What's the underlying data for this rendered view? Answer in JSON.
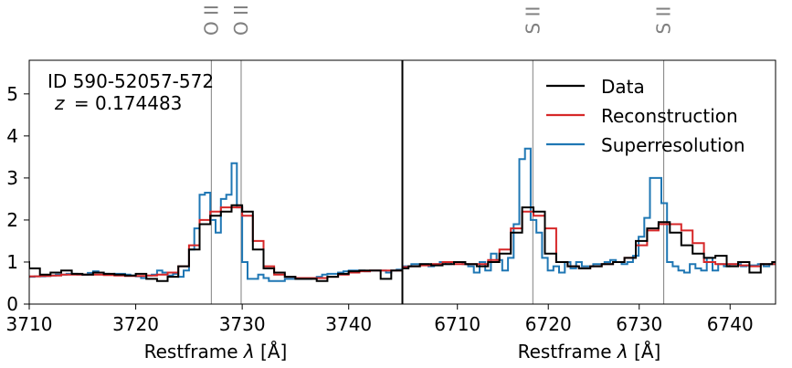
{
  "chart_data": {
    "type": "line",
    "ylim": [
      0,
      5.8
    ],
    "y_ticks": [
      "0",
      "1",
      "2",
      "3",
      "4",
      "5"
    ],
    "colors": {
      "Data": "#000000",
      "Reconstruction": "#d62728",
      "Superresolution": "#1f77b4",
      "lines": "#808080"
    },
    "annotation": {
      "id": "ID 590-52057-572",
      "z_symbol": "z",
      "z_value": "= 0.174483"
    },
    "legend": {
      "position": "upper-right",
      "entries": [
        "Data",
        "Reconstruction",
        "Superresolution"
      ]
    },
    "panels": [
      {
        "xlim": [
          3710,
          3745
        ],
        "xlabel_main": "Restframe ",
        "xlabel_sym": "λ",
        "xlabel_unit": " [Å]",
        "x_ticks": [
          "3710",
          "3720",
          "3730",
          "3740"
        ],
        "lines": [
          {
            "label": "O II",
            "x": 3727.1
          },
          {
            "label": "O II",
            "x": 3729.9
          }
        ],
        "series": [
          {
            "name": "Data",
            "step": 1.0,
            "x": [
              3709.5,
              3710.5,
              3711.5,
              3712.5,
              3713.5,
              3714.5,
              3715.5,
              3716.5,
              3717.5,
              3718.5,
              3719.5,
              3720.5,
              3721.5,
              3722.5,
              3723.5,
              3724.5,
              3725.5,
              3726.5,
              3727.5,
              3728.5,
              3729.5,
              3730.5,
              3731.5,
              3732.5,
              3733.5,
              3734.5,
              3735.5,
              3736.5,
              3737.5,
              3738.5,
              3739.5,
              3740.5,
              3741.5,
              3742.5,
              3743.5,
              3744.5
            ],
            "y": [
              1.0,
              0.85,
              0.7,
              0.75,
              0.8,
              0.72,
              0.7,
              0.75,
              0.72,
              0.7,
              0.68,
              0.72,
              0.6,
              0.55,
              0.65,
              0.9,
              1.3,
              1.9,
              2.1,
              2.2,
              2.35,
              2.2,
              1.3,
              0.85,
              0.75,
              0.65,
              0.6,
              0.6,
              0.55,
              0.65,
              0.72,
              0.78,
              0.8,
              0.8,
              0.6,
              0.8
            ]
          },
          {
            "name": "Reconstruction",
            "step": 1.0,
            "x": [
              3709.5,
              3710.5,
              3711.5,
              3712.5,
              3713.5,
              3714.5,
              3715.5,
              3716.5,
              3717.5,
              3718.5,
              3719.5,
              3720.5,
              3721.5,
              3722.5,
              3723.5,
              3724.5,
              3725.5,
              3726.5,
              3727.5,
              3728.5,
              3729.5,
              3730.5,
              3731.5,
              3732.5,
              3733.5,
              3734.5,
              3735.5,
              3736.5,
              3737.5,
              3738.5,
              3739.5,
              3740.5,
              3741.5,
              3742.5,
              3743.5,
              3744.5
            ],
            "y": [
              0.65,
              0.66,
              0.67,
              0.68,
              0.7,
              0.7,
              0.7,
              0.7,
              0.69,
              0.68,
              0.67,
              0.67,
              0.68,
              0.7,
              0.75,
              0.9,
              1.4,
              2.0,
              2.2,
              2.3,
              2.3,
              2.1,
              1.5,
              0.9,
              0.7,
              0.65,
              0.62,
              0.62,
              0.62,
              0.65,
              0.7,
              0.75,
              0.78,
              0.8,
              0.8,
              0.8
            ]
          },
          {
            "name": "Superresolution",
            "step": 0.5,
            "x": [
              3709.25,
              3709.75,
              3710.25,
              3710.75,
              3711.25,
              3711.75,
              3712.25,
              3712.75,
              3713.25,
              3713.75,
              3714.25,
              3714.75,
              3715.25,
              3715.75,
              3716.25,
              3716.75,
              3717.25,
              3717.75,
              3718.25,
              3718.75,
              3719.25,
              3719.75,
              3720.25,
              3720.75,
              3721.25,
              3721.75,
              3722.25,
              3722.75,
              3723.25,
              3723.75,
              3724.25,
              3724.75,
              3725.25,
              3725.75,
              3726.25,
              3726.75,
              3727.25,
              3727.75,
              3728.25,
              3728.75,
              3729.25,
              3729.75,
              3730.25,
              3730.75,
              3731.25,
              3731.75,
              3732.25,
              3732.75,
              3733.25,
              3733.75,
              3734.25,
              3734.75,
              3735.25,
              3735.75,
              3736.25,
              3736.75,
              3737.25,
              3737.75,
              3738.25,
              3738.75,
              3739.25,
              3739.75,
              3740.25,
              3740.75,
              3741.25,
              3741.75,
              3742.25,
              3742.75,
              3743.25,
              3743.75,
              3744.25,
              3744.75
            ],
            "y": [
              0.65,
              0.65,
              0.65,
              0.66,
              0.66,
              0.67,
              0.68,
              0.7,
              0.7,
              0.72,
              0.72,
              0.7,
              0.7,
              0.74,
              0.78,
              0.75,
              0.72,
              0.7,
              0.72,
              0.72,
              0.7,
              0.68,
              0.66,
              0.62,
              0.68,
              0.7,
              0.8,
              0.75,
              0.68,
              0.72,
              0.65,
              0.8,
              1.3,
              1.8,
              2.6,
              2.65,
              2.0,
              1.7,
              2.5,
              2.6,
              3.35,
              2.3,
              1.0,
              0.6,
              0.6,
              0.7,
              0.62,
              0.55,
              0.55,
              0.55,
              0.6,
              0.6,
              0.6,
              0.6,
              0.6,
              0.62,
              0.65,
              0.7,
              0.72,
              0.72,
              0.75,
              0.78,
              0.8,
              0.8,
              0.8,
              0.78,
              0.8,
              0.8,
              0.8,
              0.75,
              0.8,
              0.82
            ]
          }
        ]
      },
      {
        "xlim": [
          6704,
          6745
        ],
        "xlabel_main": "Restframe ",
        "xlabel_sym": "λ",
        "xlabel_unit": " [Å]",
        "x_ticks": [
          "6710",
          "6720",
          "6730",
          "6740"
        ],
        "lines": [
          {
            "label": "S II",
            "x": 6718.3
          },
          {
            "label": "S II",
            "x": 6732.7
          }
        ],
        "series": [
          {
            "name": "Data",
            "step": 1.25,
            "x": [
              6704.0,
              6705.25,
              6706.5,
              6707.75,
              6709.0,
              6710.25,
              6711.5,
              6712.75,
              6714.0,
              6715.25,
              6716.5,
              6717.75,
              6719.0,
              6720.25,
              6721.5,
              6722.75,
              6724.0,
              6725.25,
              6726.5,
              6727.75,
              6729.0,
              6730.25,
              6731.5,
              6732.75,
              6734.0,
              6735.25,
              6736.5,
              6737.75,
              6739.0,
              6740.25,
              6741.5,
              6742.75,
              6744.0,
              6745.25
            ],
            "y": [
              0.85,
              0.9,
              0.95,
              0.92,
              0.95,
              1.0,
              0.95,
              0.9,
              1.0,
              1.2,
              1.7,
              2.3,
              2.2,
              1.2,
              1.0,
              0.9,
              0.85,
              0.9,
              0.95,
              1.0,
              1.1,
              1.5,
              1.8,
              1.95,
              1.7,
              1.4,
              1.2,
              1.1,
              1.15,
              0.9,
              1.0,
              0.75,
              0.95,
              1.0
            ]
          },
          {
            "name": "Reconstruction",
            "step": 1.25,
            "x": [
              6704.0,
              6705.25,
              6706.5,
              6707.75,
              6709.0,
              6710.25,
              6711.5,
              6712.75,
              6714.0,
              6715.25,
              6716.5,
              6717.75,
              6719.0,
              6720.25,
              6721.5,
              6722.75,
              6724.0,
              6725.25,
              6726.5,
              6727.75,
              6729.0,
              6730.25,
              6731.5,
              6732.75,
              6734.0,
              6735.25,
              6736.5,
              6737.75,
              6739.0,
              6740.25,
              6741.5,
              6742.75,
              6744.0,
              6745.25
            ],
            "y": [
              0.88,
              0.9,
              0.92,
              0.95,
              1.0,
              0.95,
              0.95,
              0.95,
              1.05,
              1.3,
              1.8,
              2.2,
              2.1,
              1.8,
              1.0,
              0.9,
              0.85,
              0.9,
              0.95,
              1.0,
              1.1,
              1.4,
              1.75,
              1.9,
              1.9,
              1.75,
              1.45,
              1.0,
              0.95,
              0.95,
              0.92,
              0.9,
              0.95,
              0.95
            ]
          },
          {
            "name": "Superresolution",
            "step": 0.625,
            "x": [
              6704.0,
              6704.625,
              6705.25,
              6705.875,
              6706.5,
              6707.125,
              6707.75,
              6708.375,
              6709.0,
              6709.625,
              6710.25,
              6710.875,
              6711.5,
              6712.125,
              6712.75,
              6713.375,
              6714.0,
              6714.625,
              6715.25,
              6715.875,
              6716.5,
              6717.125,
              6717.75,
              6718.375,
              6719.0,
              6719.625,
              6720.25,
              6720.875,
              6721.5,
              6722.125,
              6722.75,
              6723.375,
              6724.0,
              6724.625,
              6725.25,
              6725.875,
              6726.5,
              6727.125,
              6727.75,
              6728.375,
              6729.0,
              6729.625,
              6730.25,
              6730.875,
              6731.5,
              6732.125,
              6732.75,
              6733.375,
              6734.0,
              6734.625,
              6735.25,
              6735.875,
              6736.5,
              6737.125,
              6737.75,
              6738.375,
              6739.0,
              6739.625,
              6740.25,
              6740.875,
              6741.5,
              6742.125,
              6742.75,
              6743.375,
              6744.0,
              6744.625
            ],
            "y": [
              0.9,
              0.9,
              0.95,
              0.95,
              0.95,
              0.9,
              0.95,
              1.0,
              0.95,
              1.0,
              1.0,
              0.95,
              0.9,
              0.75,
              1.0,
              0.8,
              1.2,
              1.05,
              0.8,
              1.1,
              1.9,
              3.45,
              3.7,
              2.0,
              1.7,
              1.1,
              0.8,
              0.9,
              0.75,
              1.0,
              0.85,
              1.0,
              0.9,
              0.9,
              0.95,
              0.95,
              1.0,
              1.05,
              1.0,
              0.95,
              1.0,
              1.15,
              1.6,
              2.05,
              3.0,
              3.0,
              2.4,
              1.0,
              0.9,
              0.8,
              0.75,
              0.95,
              0.85,
              0.8,
              1.1,
              0.8,
              0.95,
              0.9,
              0.95,
              0.95,
              0.9,
              0.92,
              0.92,
              0.95,
              0.9,
              0.95
            ]
          }
        ]
      }
    ]
  }
}
